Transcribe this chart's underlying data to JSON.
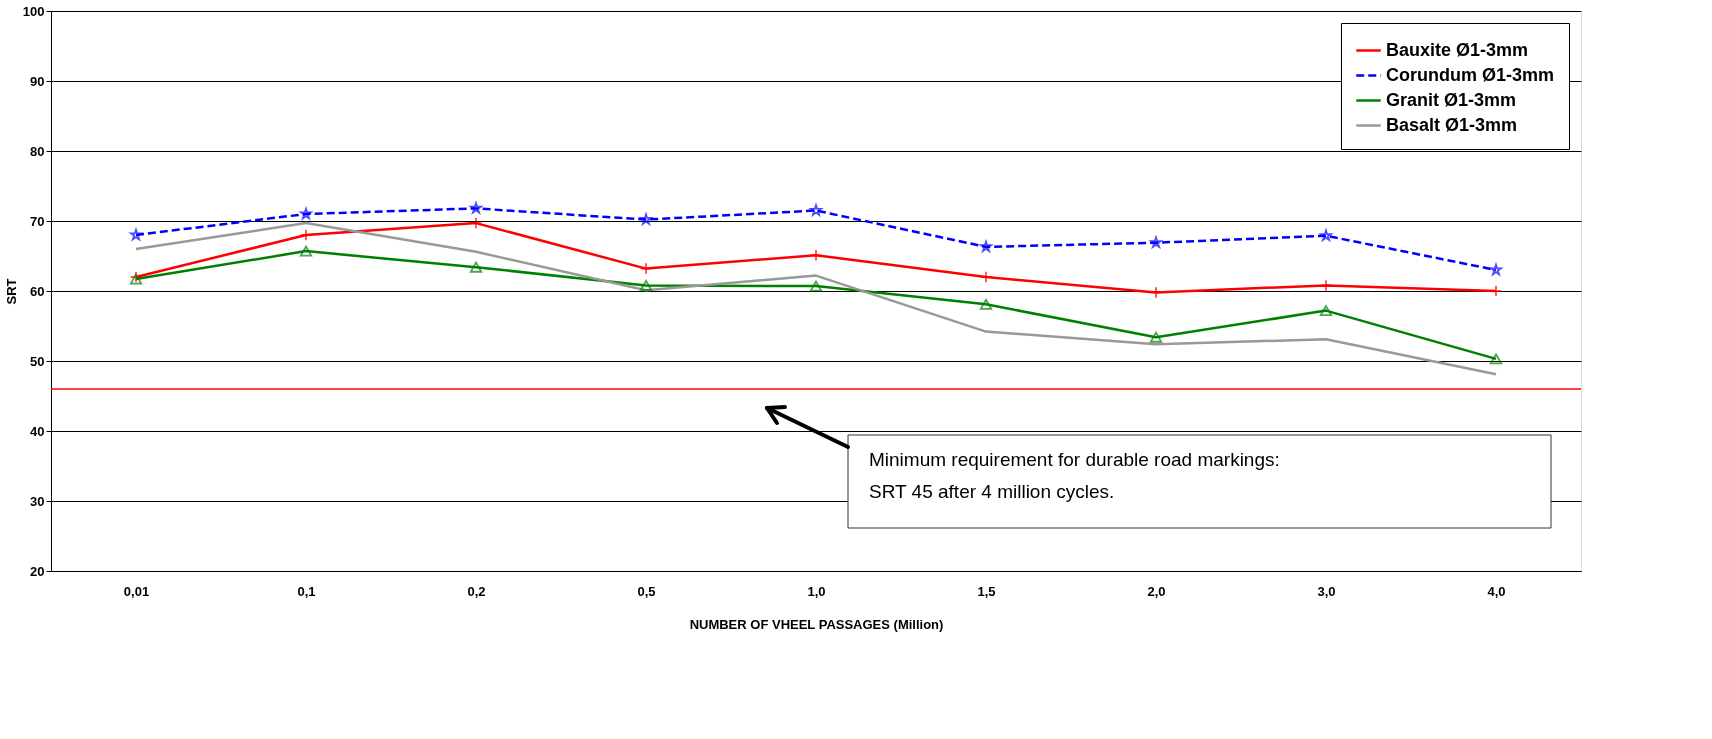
{
  "chart_data": {
    "type": "line",
    "xlabel": "NUMBER OF VHEEL PASSAGES (Million)",
    "ylabel": "SRT",
    "categories": [
      "0,01",
      "0,1",
      "0,2",
      "0,5",
      "1,0",
      "1,5",
      "2,0",
      "3,0",
      "4,0"
    ],
    "series": [
      {
        "name": "Bauxite Ø1-3mm",
        "color": "#ff0000",
        "marker": "cross",
        "line_style": "solid",
        "values": [
          62,
          68,
          69.7,
          63.2,
          65.1,
          62,
          59.8,
          60.8,
          60
        ]
      },
      {
        "name": "Corundum Ø1-3mm",
        "color": "#0000ff",
        "marker": "star",
        "line_style": "dashed",
        "values": [
          68,
          71,
          71.8,
          70.2,
          71.5,
          66.3,
          66.9,
          67.9,
          63
        ]
      },
      {
        "name": "Granit Ø1-3mm",
        "color": "#008000",
        "marker": "triangle",
        "line_style": "solid",
        "values": [
          61.7,
          65.7,
          63.4,
          60.8,
          60.7,
          58.1,
          53.4,
          57.2,
          50.3
        ]
      },
      {
        "name": "Basalt Ø1-3mm",
        "color": "#999999",
        "marker": "none",
        "line_style": "solid",
        "values": [
          66,
          69.7,
          65.6,
          60.1,
          62.2,
          54.2,
          52.4,
          53.1,
          48.1
        ]
      }
    ],
    "ylim": [
      20,
      100
    ],
    "yticks": [
      20,
      30,
      40,
      50,
      60,
      70,
      80,
      90,
      100
    ],
    "grid": "y",
    "legend": "top right",
    "ref_lines": [
      {
        "axis": "y",
        "value": 46,
        "color": "#ff0000"
      }
    ],
    "annotations": [
      "Minimum requirement for durable road markings:\nSRT 45 after 4 million cycles."
    ]
  }
}
